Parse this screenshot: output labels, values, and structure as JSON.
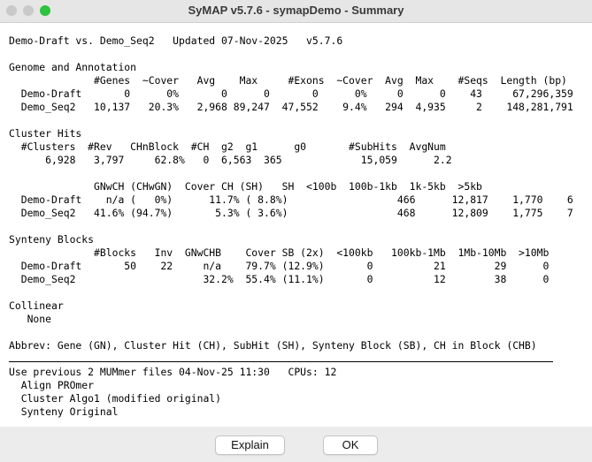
{
  "window": {
    "title": "SyMAP v5.7.6 - symapDemo - Summary"
  },
  "summary": [
    [
      "Demo-Draft vs. Demo_Seq2   Updated 07-Nov-2025   v5.7.6"
    ],
    [
      "Genome and Annotation",
      "              #Genes  ~Cover   Avg    Max     #Exons  ~Cover  Avg  Max    #Seqs  Length (bp)",
      "  Demo-Draft       0      0%       0      0       0      0%     0      0    43     67,296,359",
      "  Demo_Seq2   10,137   20.3%   2,968 89,247  47,552    9.4%   294  4,935     2    148,281,791"
    ],
    [
      "Cluster Hits",
      "  #Clusters  #Rev   CHnBlock  #CH  g2  g1      g0       #SubHits  AvgNum",
      "      6,928   3,797     62.8%   0  6,563  365             15,059      2.2"
    ],
    [
      "              GNwCH (CHwGN)  Cover CH (SH)   SH  <100b  100b-1kb  1k-5kb  >5kb",
      "  Demo-Draft    n/a (   0%)      11.7% ( 8.8%)                  466      12,817    1,770    6",
      "  Demo_Seq2   41.6% (94.7%)       5.3% ( 3.6%)                  468      12,809    1,775    7"
    ],
    [
      "Synteny Blocks",
      "              #Blocks   Inv  GNwCHB    Cover SB (2x)  <100kb   100kb-1Mb  1Mb-10Mb  >10Mb",
      "  Demo-Draft       50    22     n/a    79.7% (12.9%)       0          21        29      0",
      "  Demo_Seq2                     32.2%  55.4% (11.1%)       0          12        38      0"
    ],
    [
      "Collinear",
      "   None"
    ],
    [
      "Abbrev: Gene (GN), Cluster Hit (CH), SubHit (SH), Synteny Block (SB), CH in Block (CHB)"
    ]
  ],
  "footer": [
    "Use previous 2 MUMmer files 04-Nov-25 11:30   CPUs: 12",
    "  Align PROmer",
    "  Cluster Algo1 (modified original)",
    "  Synteny Original"
  ],
  "buttons": [
    "Explain",
    "OK"
  ]
}
